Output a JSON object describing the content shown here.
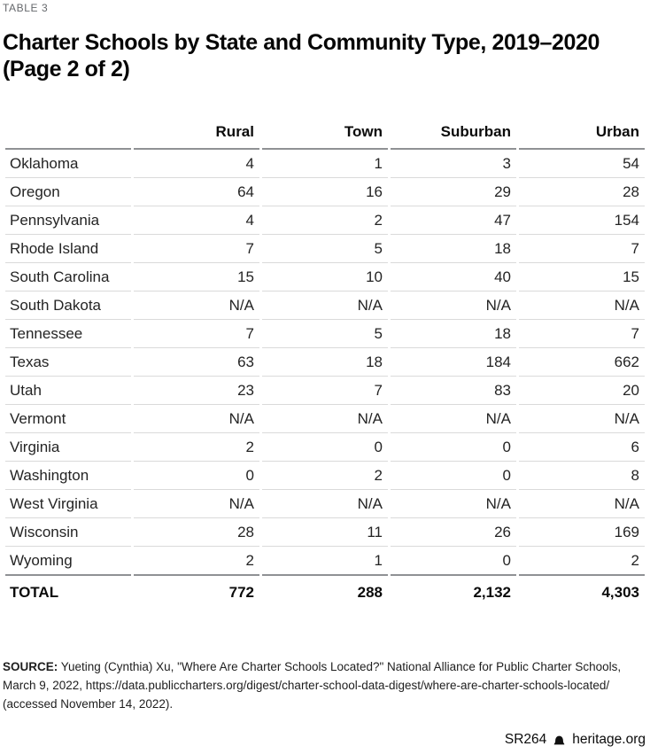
{
  "eyebrow": "TABLE 3",
  "title": {
    "line1": "Charter Schools by State and Community Type, 2019–2020",
    "line2": "(Page 2 of 2)"
  },
  "table": {
    "columns": [
      "Rural",
      "Town",
      "Suburban",
      "Urban"
    ],
    "rows": [
      {
        "state": "Oklahoma",
        "values": [
          "4",
          "1",
          "3",
          "54"
        ]
      },
      {
        "state": "Oregon",
        "values": [
          "64",
          "16",
          "29",
          "28"
        ]
      },
      {
        "state": "Pennsylvania",
        "values": [
          "4",
          "2",
          "47",
          "154"
        ]
      },
      {
        "state": "Rhode Island",
        "values": [
          "7",
          "5",
          "18",
          "7"
        ]
      },
      {
        "state": "South Carolina",
        "values": [
          "15",
          "10",
          "40",
          "15"
        ]
      },
      {
        "state": "South Dakota",
        "values": [
          "N/A",
          "N/A",
          "N/A",
          "N/A"
        ]
      },
      {
        "state": "Tennessee",
        "values": [
          "7",
          "5",
          "18",
          "7"
        ]
      },
      {
        "state": "Texas",
        "values": [
          "63",
          "18",
          "184",
          "662"
        ]
      },
      {
        "state": "Utah",
        "values": [
          "23",
          "7",
          "83",
          "20"
        ]
      },
      {
        "state": "Vermont",
        "values": [
          "N/A",
          "N/A",
          "N/A",
          "N/A"
        ]
      },
      {
        "state": "Virginia",
        "values": [
          "2",
          "0",
          "0",
          "6"
        ]
      },
      {
        "state": "Washington",
        "values": [
          "0",
          "2",
          "0",
          "8"
        ]
      },
      {
        "state": "West Virginia",
        "values": [
          "N/A",
          "N/A",
          "N/A",
          "N/A"
        ]
      },
      {
        "state": "Wisconsin",
        "values": [
          "28",
          "11",
          "26",
          "169"
        ]
      },
      {
        "state": "Wyoming",
        "values": [
          "2",
          "1",
          "0",
          "2"
        ]
      }
    ],
    "total": {
      "label": "TOTAL",
      "values": [
        "772",
        "288",
        "2,132",
        "4,303"
      ]
    }
  },
  "source": {
    "label": "SOURCE:",
    "text": " Yueting (Cynthia) Xu, \"Where Are Charter Schools Located?\" National Alliance for Public Charter Schools, March 9, 2022, https://data.publiccharters.org/digest/charter-school-data-digest/where-are-charter-schools-located/ (accessed November 14, 2022)."
  },
  "footer": {
    "report_id": "SR264",
    "site": "heritage.org"
  },
  "colors": {
    "rule_dark": "#8f9194",
    "rule_light": "#dadada",
    "eyebrow_gray": "#65686c",
    "text_dark": "#0b0b0b"
  }
}
